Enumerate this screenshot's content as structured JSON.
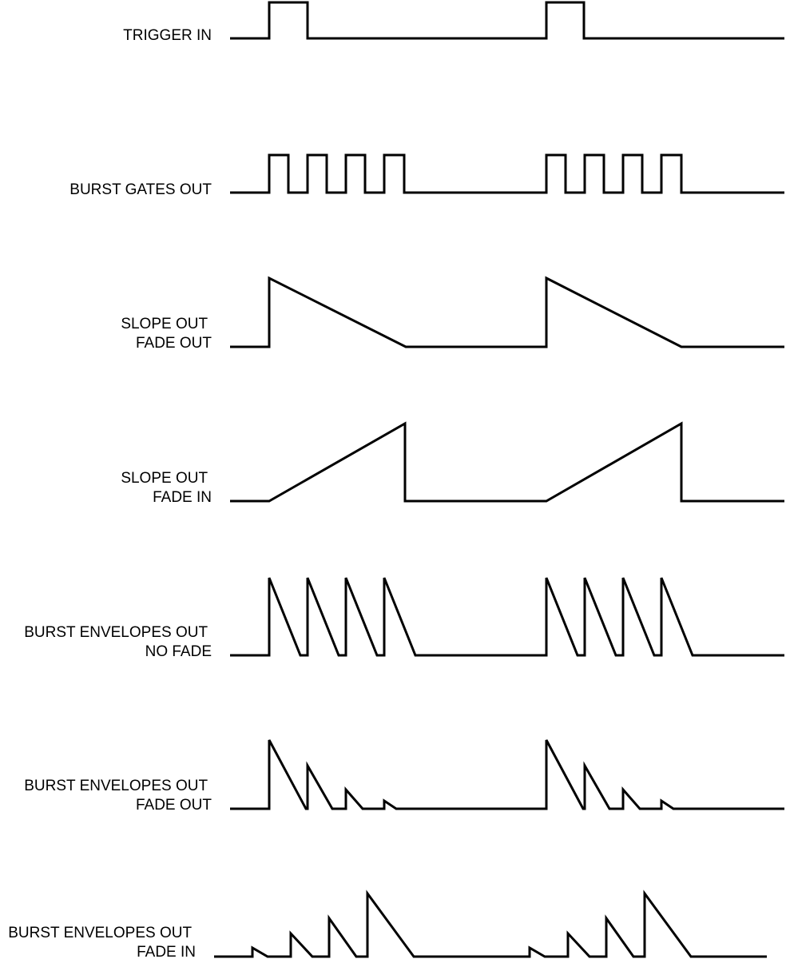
{
  "diagram": {
    "colors": {
      "background": "#ffffff",
      "line": "#000000",
      "text": "#000000"
    },
    "signals": [
      {
        "id": "trigger-in",
        "label_lines": [
          "TRIGGER IN"
        ]
      },
      {
        "id": "burst-gates-out",
        "label_lines": [
          "BURST GATES OUT"
        ]
      },
      {
        "id": "slope-out-fade-out",
        "label_lines": [
          "SLOPE OUT",
          "FADE OUT"
        ]
      },
      {
        "id": "slope-out-fade-in",
        "label_lines": [
          "SLOPE OUT",
          "FADE IN"
        ]
      },
      {
        "id": "burst-envelopes-out-no-fade",
        "label_lines": [
          "BURST ENVELOPES OUT",
          "NO FADE"
        ]
      },
      {
        "id": "burst-envelopes-out-fade-out",
        "label_lines": [
          "BURST ENVELOPES OUT",
          "FADE OUT"
        ]
      },
      {
        "id": "burst-envelopes-out-fade-in",
        "label_lines": [
          "BURST ENVELOPES OUT",
          "FADE IN"
        ]
      }
    ]
  }
}
